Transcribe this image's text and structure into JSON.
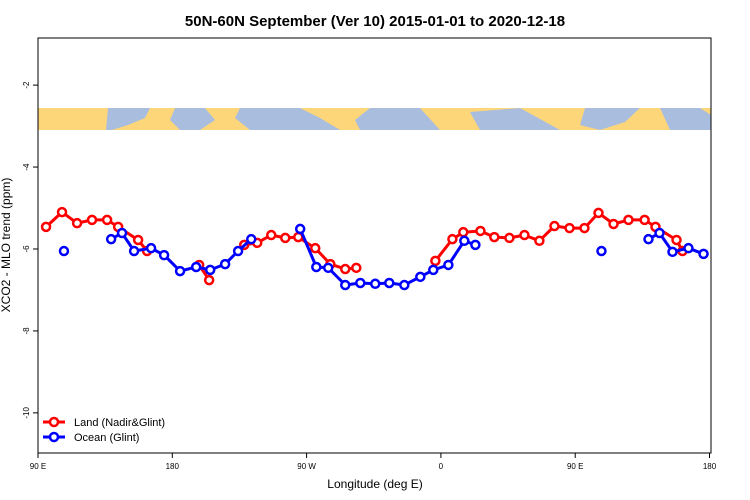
{
  "chart_data": {
    "type": "line",
    "title": "50N-60N September (Ver 10)   2015-01-01 to 2020-12-18",
    "x_label": "Longitude (deg E)",
    "y_label": "XCO2 - MLO trend (ppm)",
    "xlim": [
      90,
      541
    ],
    "ylim": [
      -10.98,
      -0.85
    ],
    "xticks": [
      {
        "value": 90,
        "label": "90 E"
      },
      {
        "value": 180,
        "label": "180"
      },
      {
        "value": 270,
        "label": "90 W"
      },
      {
        "value": 360,
        "label": "0"
      },
      {
        "value": 450,
        "label": "90 E"
      },
      {
        "value": 540,
        "label": "180"
      }
    ],
    "yticks": [
      -2,
      -4,
      -6,
      -8,
      -10
    ],
    "legend": "bottom-left",
    "series": [
      {
        "name": "Land (Nadir&Glint)",
        "color": "#ff0000",
        "x": [
          95.4,
          106.1,
          116.2,
          126.2,
          136.3,
          143.7,
          157.1,
          163.1,
          null,
          198.0,
          204.7,
          null,
          228.2,
          236.9,
          246.3,
          255.7,
          264.4,
          275.8,
          285.9,
          295.9,
          303.3,
          null,
          356.3,
          367.7,
          375.0,
          386.5,
          395.8,
          405.9,
          416.0,
          426.0,
          436.1,
          446.2,
          456.2,
          465.6,
          475.7,
          485.7,
          496.5,
          503.8,
          517.9,
          521.9
        ],
        "values": [
          -5.46,
          -5.1,
          -5.37,
          -5.29,
          -5.29,
          -5.46,
          -5.78,
          -6.05,
          null,
          -6.39,
          -6.76,
          null,
          -5.9,
          -5.85,
          -5.66,
          -5.73,
          -5.71,
          -5.98,
          -6.37,
          -6.49,
          -6.46,
          null,
          -6.29,
          -5.76,
          -5.59,
          -5.56,
          -5.71,
          -5.73,
          -5.66,
          -5.8,
          -5.44,
          -5.49,
          -5.49,
          -5.12,
          -5.39,
          -5.29,
          -5.29,
          -5.46,
          -5.78,
          -6.05
        ]
      },
      {
        "name": "Ocean (Glint)",
        "color": "#0000ff",
        "x": [
          107.4,
          null,
          139.0,
          146.3,
          154.4,
          165.8,
          174.5,
          185.2,
          196.0,
          205.4,
          215.4,
          224.1,
          232.9,
          null,
          265.7,
          276.5,
          284.5,
          295.9,
          306.0,
          316.0,
          325.4,
          335.5,
          346.2,
          354.9,
          365.0,
          375.7,
          383.1,
          null,
          467.6,
          null,
          499.1,
          506.5,
          515.2,
          525.9,
          536.0
        ],
        "values": [
          -6.05,
          null,
          -5.76,
          -5.61,
          -6.05,
          -5.98,
          -6.15,
          -6.54,
          -6.44,
          -6.51,
          -6.37,
          -6.05,
          -5.76,
          null,
          -5.51,
          -6.44,
          -6.46,
          -6.88,
          -6.83,
          -6.85,
          -6.83,
          -6.88,
          -6.68,
          -6.51,
          -6.39,
          -5.8,
          -5.9,
          null,
          -6.05,
          null,
          -5.76,
          -5.61,
          -6.07,
          -5.98,
          -6.12
        ]
      }
    ]
  }
}
